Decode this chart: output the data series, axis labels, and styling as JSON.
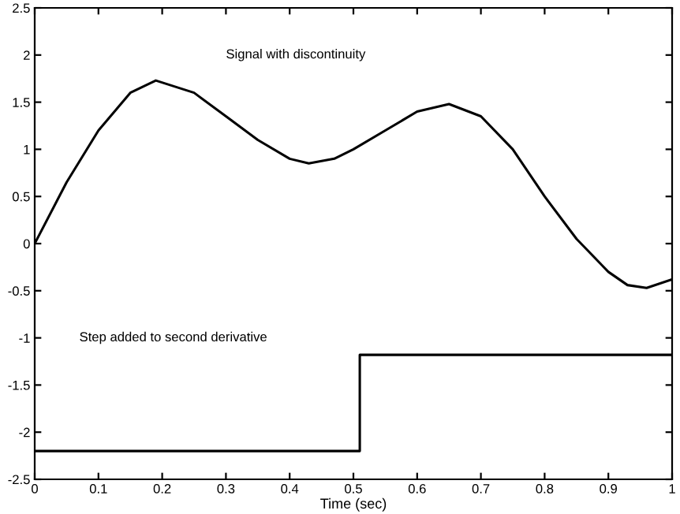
{
  "chart_data": {
    "type": "line",
    "xlabel": "Time (sec)",
    "series": [
      {
        "color": "#000000",
        "x": [
          0,
          0.05,
          0.1,
          0.15,
          0.19,
          0.25,
          0.3,
          0.35,
          0.4,
          0.43,
          0.47,
          0.5,
          0.55,
          0.6,
          0.65,
          0.7,
          0.75,
          0.8,
          0.85,
          0.9,
          0.93,
          0.96,
          1
        ],
        "values": [
          0,
          0.65,
          1.2,
          1.6,
          1.73,
          1.6,
          1.35,
          1.1,
          0.9,
          0.85,
          0.9,
          1.0,
          1.2,
          1.4,
          1.48,
          1.35,
          1.0,
          0.5,
          0.05,
          -0.3,
          -0.44,
          -0.47,
          -0.38
        ]
      },
      {
        "type": "step",
        "color": "#000000",
        "x": [
          0,
          0.51,
          1
        ],
        "values": [
          -2.2,
          -1.18,
          -1.18
        ]
      }
    ],
    "annotations": [
      "Signal with discontinuity",
      "Step added to second derivative"
    ],
    "xlim": [
      0,
      1
    ],
    "xticks": [
      0,
      0.1,
      0.2,
      0.3,
      0.4,
      0.5,
      0.6,
      0.7,
      0.8,
      0.9,
      1
    ],
    "ylim": [
      -2.5,
      2.5
    ],
    "yticks": [
      -2.5,
      -2,
      -1.5,
      -1,
      -0.5,
      0,
      0.5,
      1,
      1.5,
      2,
      2.5
    ],
    "grid": false,
    "legend": false
  }
}
